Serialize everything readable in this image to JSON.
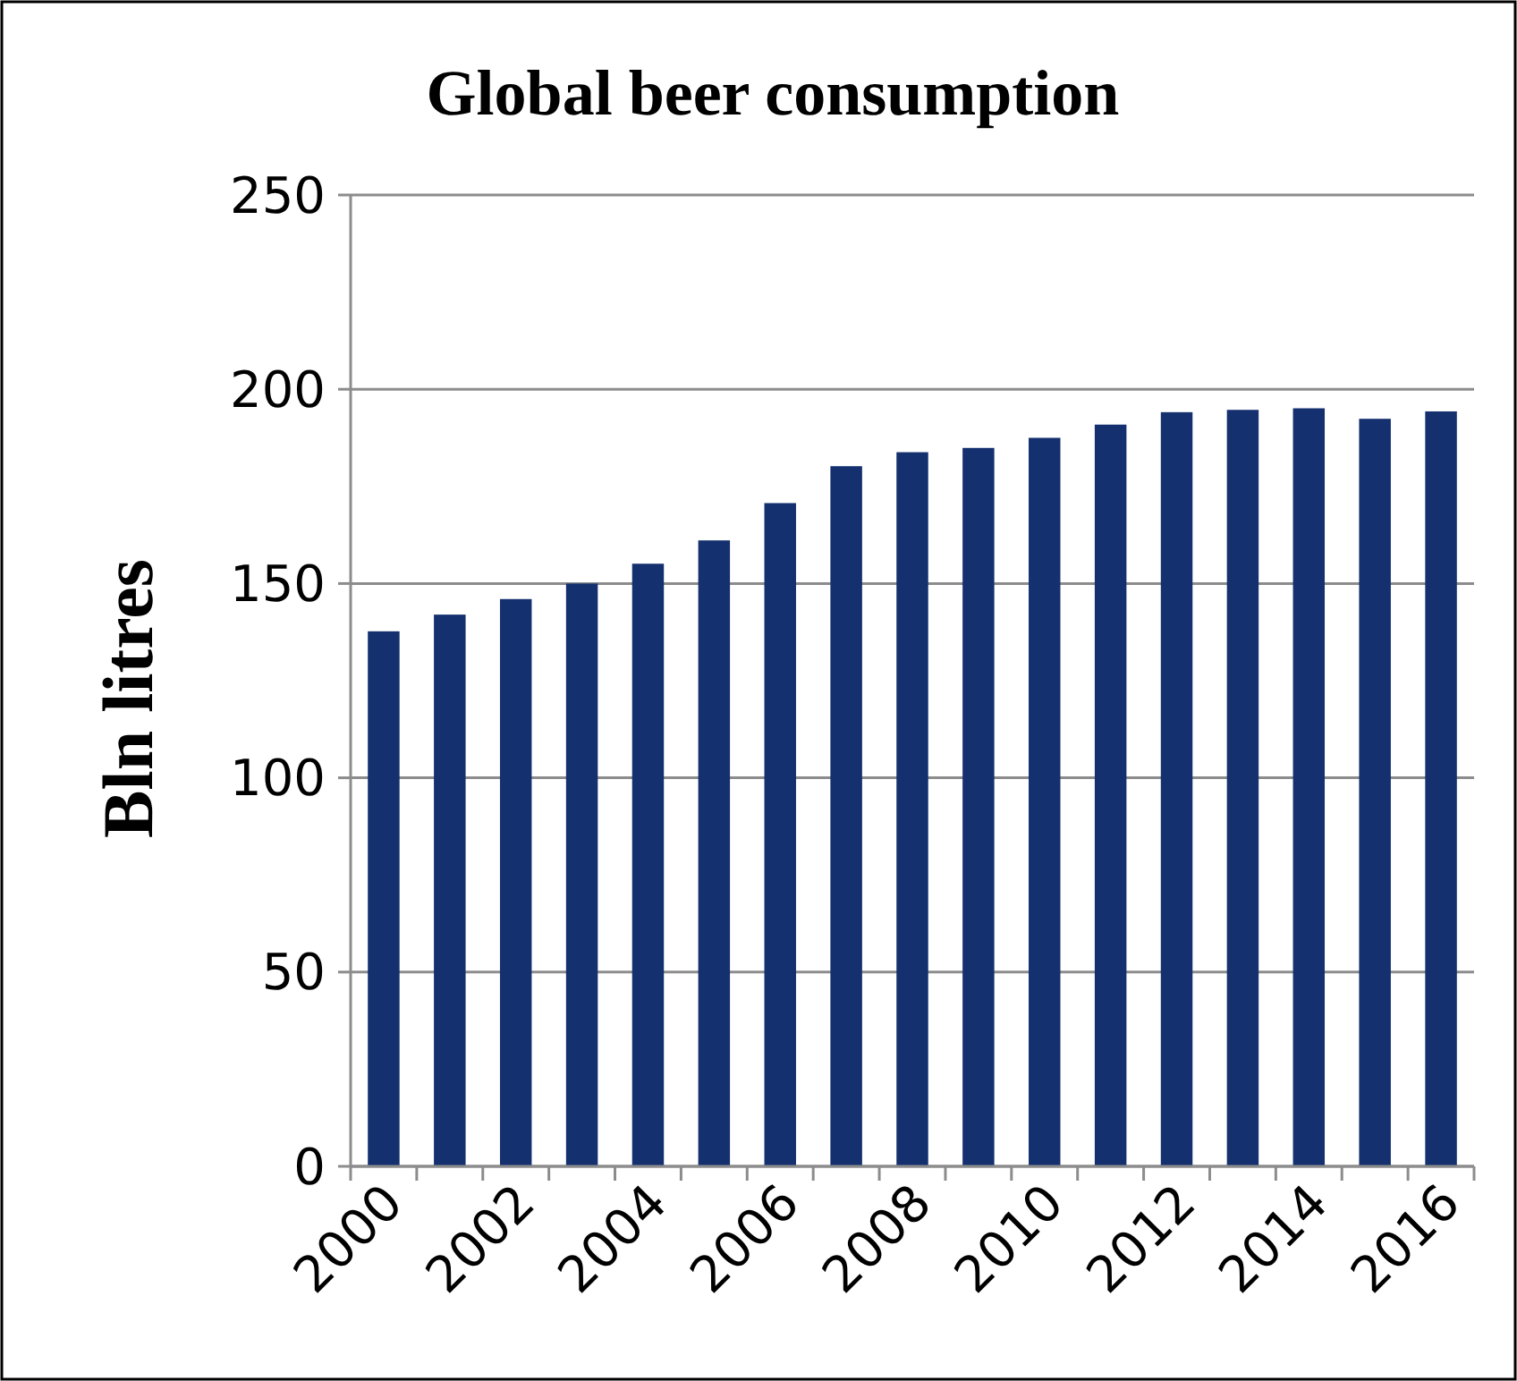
{
  "chart_data": {
    "type": "bar",
    "title": "Global beer consumption",
    "ylabel": "Bln litres",
    "categories": [
      "2000",
      null,
      "2002",
      null,
      "2004",
      null,
      "2006",
      null,
      "2008",
      null,
      "2010",
      null,
      "2012",
      null,
      "2014",
      null,
      "2016"
    ],
    "values": [
      137.7,
      142,
      146,
      150,
      155.1,
      161.1,
      170.7,
      180.2,
      183.8,
      184.9,
      187.5,
      190.9,
      194.1,
      194.7,
      195.1,
      192.4,
      194.3
    ],
    "color": "#14306e",
    "ylim": [
      0,
      250
    ],
    "yticks": [
      0,
      50,
      100,
      150,
      200,
      250
    ],
    "grid": "y"
  }
}
